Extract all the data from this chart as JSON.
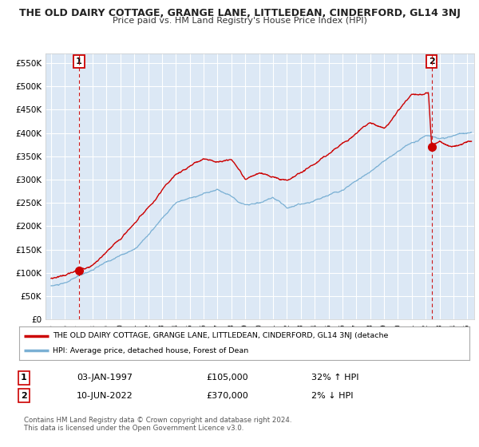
{
  "title": "THE OLD DAIRY COTTAGE, GRANGE LANE, LITTLEDEAN, CINDERFORD, GL14 3NJ",
  "subtitle": "Price paid vs. HM Land Registry's House Price Index (HPI)",
  "bg_color": "#dce8f5",
  "fig_bg_color": "#ffffff",
  "ylim": [
    0,
    570000
  ],
  "yticks": [
    0,
    50000,
    100000,
    150000,
    200000,
    250000,
    300000,
    350000,
    400000,
    450000,
    500000,
    550000
  ],
  "ytick_labels": [
    "£0",
    "£50K",
    "£100K",
    "£150K",
    "£200K",
    "£250K",
    "£300K",
    "£350K",
    "£400K",
    "£450K",
    "£500K",
    "£550K"
  ],
  "xlim_start": 1994.6,
  "xlim_end": 2025.5,
  "sale1_x": 1997.01,
  "sale1_y": 105000,
  "sale1_label": "1",
  "sale2_x": 2022.44,
  "sale2_y": 370000,
  "sale2_label": "2",
  "legend_line1": "THE OLD DAIRY COTTAGE, GRANGE LANE, LITTLEDEAN, CINDERFORD, GL14 3NJ (detache",
  "legend_line2": "HPI: Average price, detached house, Forest of Dean",
  "table_row1": [
    "1",
    "03-JAN-1997",
    "£105,000",
    "32% ↑ HPI"
  ],
  "table_row2": [
    "2",
    "10-JUN-2022",
    "£370,000",
    "2% ↓ HPI"
  ],
  "footer": "Contains HM Land Registry data © Crown copyright and database right 2024.\nThis data is licensed under the Open Government Licence v3.0.",
  "line_color_red": "#cc0000",
  "line_color_blue": "#7ab0d4",
  "grid_color": "#ffffff",
  "vline_color": "#cc0000",
  "box_color": "#cc0000"
}
